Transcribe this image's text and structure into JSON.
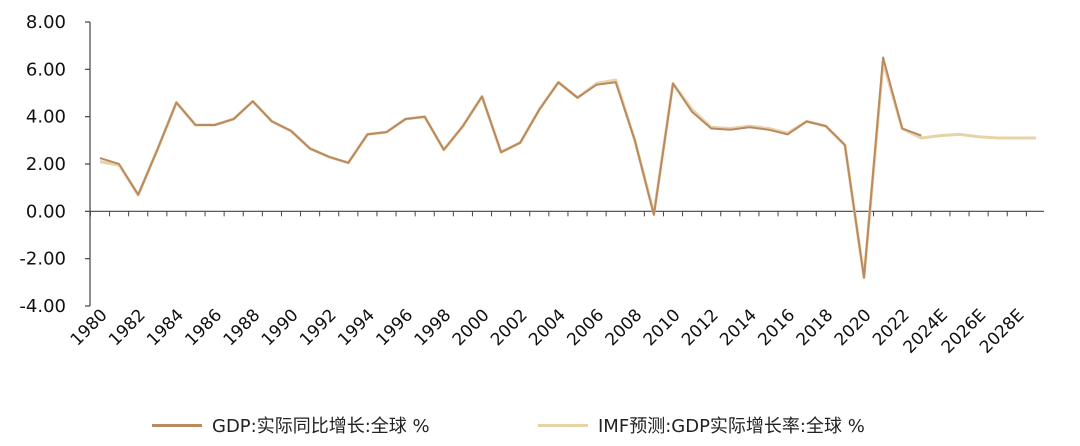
{
  "chart_data": {
    "type": "line",
    "title": "",
    "xlabel": "",
    "ylabel": "",
    "ylim": [
      -4,
      8
    ],
    "yticks": [
      "8.00",
      "6.00",
      "4.00",
      "2.00",
      "0.00",
      "-2.00",
      "-4.00"
    ],
    "x": [
      "1980",
      "1981",
      "1982",
      "1983",
      "1984",
      "1985",
      "1986",
      "1987",
      "1988",
      "1989",
      "1990",
      "1991",
      "1992",
      "1993",
      "1994",
      "1995",
      "1996",
      "1997",
      "1998",
      "1999",
      "2000",
      "2001",
      "2002",
      "2003",
      "2004",
      "2005",
      "2006",
      "2007",
      "2008",
      "2009",
      "2010",
      "2011",
      "2012",
      "2013",
      "2014",
      "2015",
      "2016",
      "2017",
      "2018",
      "2019",
      "2020",
      "2021",
      "2022",
      "2023",
      "2024E",
      "2025E",
      "2026E",
      "2027E",
      "2028E",
      "2029E"
    ],
    "xtick_labels": [
      "1980",
      "1982",
      "1984",
      "1986",
      "1988",
      "1990",
      "1992",
      "1994",
      "1996",
      "1998",
      "2000",
      "2002",
      "2004",
      "2006",
      "2008",
      "2010",
      "2012",
      "2014",
      "2016",
      "2018",
      "2020",
      "2022",
      "2024E",
      "2026E",
      "2028E"
    ],
    "grid": false,
    "legend_position": "bottom",
    "series": [
      {
        "name": "GDP:实际同比增长:全球 %",
        "color": "#b98a62",
        "values": [
          2.25,
          2.0,
          0.7,
          2.6,
          4.6,
          3.65,
          3.65,
          3.9,
          4.65,
          3.8,
          3.4,
          2.65,
          2.3,
          2.05,
          3.25,
          3.35,
          3.9,
          4.0,
          2.6,
          3.6,
          4.85,
          2.5,
          2.9,
          4.3,
          5.45,
          4.8,
          5.35,
          5.45,
          3.0,
          -0.15,
          5.4,
          4.2,
          3.5,
          3.45,
          3.55,
          3.45,
          3.25,
          3.8,
          3.6,
          2.8,
          -2.8,
          6.5,
          3.5,
          3.2,
          null,
          null,
          null,
          null,
          null,
          null
        ]
      },
      {
        "name": "IMF预测:GDP实际增长率:全球 %",
        "color": "#e8d3a6",
        "values": [
          2.1,
          1.95,
          0.7,
          2.6,
          4.6,
          3.65,
          3.65,
          3.9,
          4.65,
          3.8,
          3.4,
          2.65,
          2.3,
          2.05,
          3.25,
          3.35,
          3.9,
          4.0,
          2.6,
          3.6,
          4.85,
          2.5,
          2.9,
          4.3,
          5.45,
          4.8,
          5.4,
          5.55,
          3.0,
          -0.1,
          5.4,
          4.3,
          3.55,
          3.5,
          3.6,
          3.5,
          3.3,
          3.8,
          3.6,
          2.8,
          -2.8,
          6.3,
          3.5,
          3.1,
          3.2,
          3.25,
          3.15,
          3.1,
          3.1,
          3.1
        ]
      }
    ]
  }
}
